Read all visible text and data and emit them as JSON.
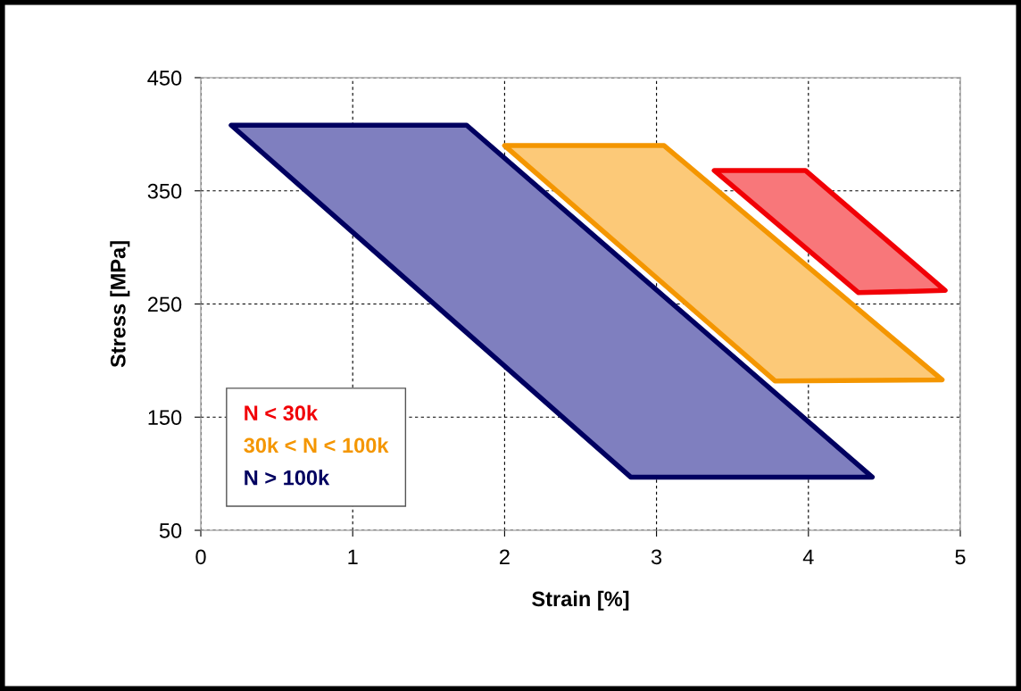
{
  "chart_data": {
    "type": "area",
    "xlabel": "Strain [%]",
    "ylabel": "Stress [MPa]",
    "xlim": [
      0,
      5
    ],
    "xticks": [
      0,
      1,
      2,
      3,
      4,
      5
    ],
    "ylim": [
      50,
      450
    ],
    "yticks": [
      50,
      150,
      250,
      350,
      450
    ],
    "grid": true,
    "line_style": "dashed",
    "legend": "bottom left",
    "series": [
      {
        "name": "N < 30k",
        "color": "#f8777a",
        "x": [
          3.38,
          3.98,
          4.9,
          4.33
        ],
        "values": [
          368,
          368,
          262,
          260
        ]
      },
      {
        "name": "30k < N < 100k",
        "color": "#fcc978",
        "x": [
          2.0,
          3.05,
          4.88,
          3.78
        ],
        "values": [
          390,
          390,
          183,
          182
        ]
      },
      {
        "name": "N > 100k",
        "color": "#7f7fbf",
        "x": [
          0.2,
          1.75,
          4.42,
          2.83
        ],
        "values": [
          408,
          408,
          97,
          97
        ]
      }
    ]
  }
}
